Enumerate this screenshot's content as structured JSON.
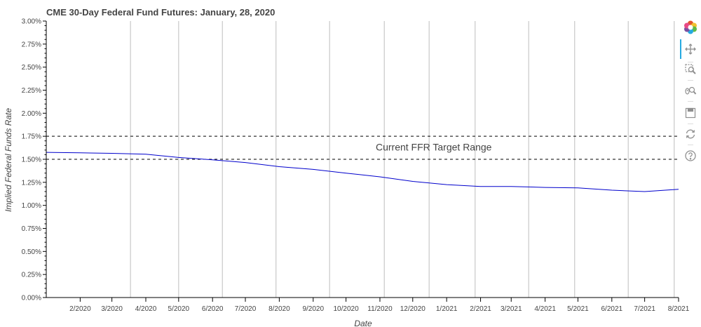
{
  "chart_data": {
    "type": "line",
    "title": "CME 30-Day Federal Fund Futures: January, 28, 2020",
    "xlabel": "Date",
    "ylabel": "Implied Federal Funds Rate",
    "x_ticks": [
      "2/2020",
      "3/2020",
      "4/2020",
      "5/2020",
      "6/2020",
      "7/2020",
      "8/2020",
      "9/2020",
      "10/2020",
      "11/2020",
      "12/2020",
      "1/2021",
      "2/2021",
      "3/2021",
      "4/2021",
      "5/2021",
      "6/2021",
      "7/2021",
      "8/2021"
    ],
    "y_ticks": [
      "0.00%",
      "0.25%",
      "0.50%",
      "0.75%",
      "1.00%",
      "1.25%",
      "1.50%",
      "1.75%",
      "2.00%",
      "2.25%",
      "2.50%",
      "2.75%",
      "3.00%"
    ],
    "ylim": [
      0,
      3.0
    ],
    "x": [
      "1/2020",
      "2/2020",
      "3/2020",
      "4/2020",
      "5/2020",
      "6/2020",
      "7/2020",
      "8/2020",
      "9/2020",
      "10/2020",
      "11/2020",
      "12/2020",
      "1/2021",
      "2/2021",
      "3/2021",
      "4/2021",
      "5/2021",
      "6/2021",
      "7/2021",
      "8/2021"
    ],
    "series": [
      {
        "values": [
          1.575,
          1.57,
          1.565,
          1.555,
          1.52,
          1.495,
          1.465,
          1.42,
          1.39,
          1.35,
          1.31,
          1.26,
          1.225,
          1.205,
          1.205,
          1.195,
          1.19,
          1.165,
          1.15,
          1.175
        ],
        "color": "#0000cc"
      }
    ],
    "reference_lines": [
      {
        "y": 1.75,
        "style": "dashed",
        "color": "#000000"
      },
      {
        "y": 1.5,
        "style": "dashed",
        "color": "#000000"
      }
    ],
    "vertical_lines": [
      "3/18/2020",
      "5/1/2020",
      "6/10/2020",
      "7/29/2020",
      "9/16/2020",
      "11/5/2020",
      "12/16/2020",
      "1/27/2021",
      "3/17/2021",
      "4/28/2021",
      "6/16/2021",
      "7/28/2021"
    ],
    "annotation": {
      "text": "Current FFR Target Range",
      "x": "11/2020",
      "y": 1.625
    },
    "grid": false,
    "toolbar_position": "right"
  },
  "toolbar": {
    "tools": [
      "bokeh-logo-icon",
      "pan-icon",
      "box-zoom-icon",
      "wheel-zoom-icon",
      "save-icon",
      "reset-icon",
      "help-icon"
    ]
  }
}
